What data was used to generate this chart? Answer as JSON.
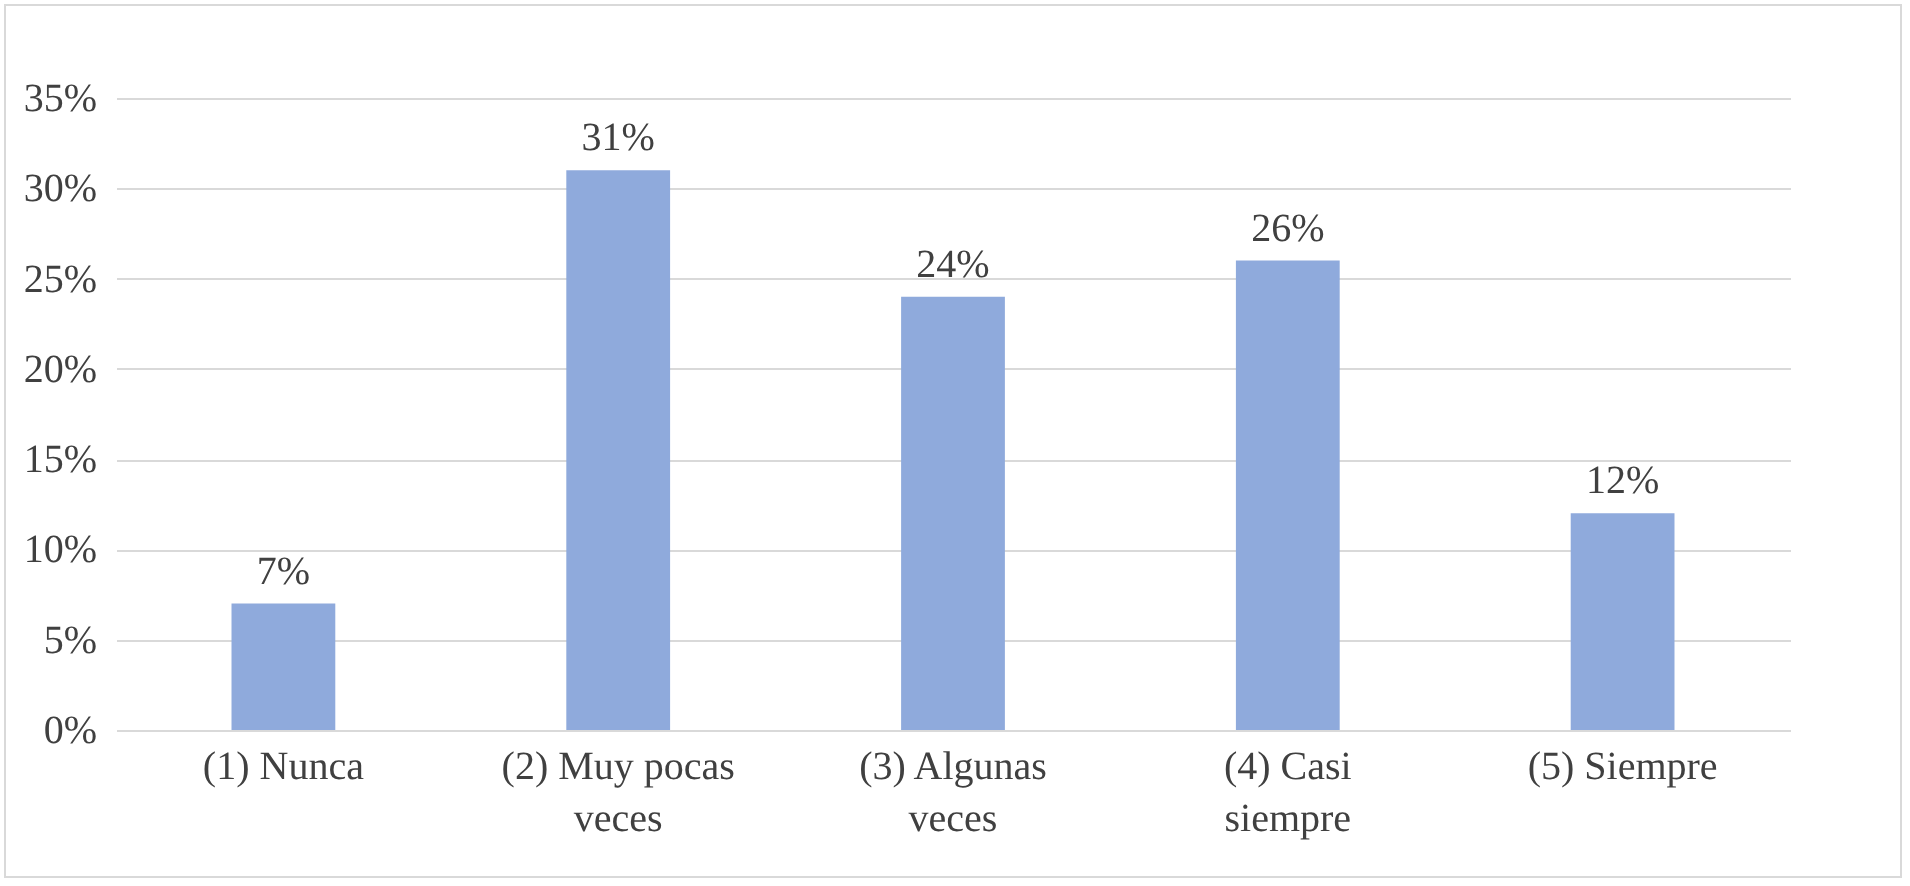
{
  "chart_data": {
    "type": "bar",
    "categories": [
      "(1) Nunca",
      "(2) Muy pocas veces",
      "(3) Algunas veces",
      "(4) Casi siempre",
      "(5) Siempre"
    ],
    "values": [
      7,
      31,
      24,
      26,
      12
    ],
    "color": "#8faadc",
    "value_labels": [
      "7%",
      "31%",
      "24%",
      "26%",
      "12%"
    ],
    "ylim": [
      0,
      35
    ],
    "yticks": [
      {
        "value": 0,
        "label": "0%"
      },
      {
        "value": 5,
        "label": "5%"
      },
      {
        "value": 10,
        "label": "10%"
      },
      {
        "value": 15,
        "label": "15%"
      },
      {
        "value": 20,
        "label": "20%"
      },
      {
        "value": 25,
        "label": "25%"
      },
      {
        "value": 30,
        "label": "30%"
      },
      {
        "value": 35,
        "label": "35%"
      }
    ],
    "grid": "y"
  }
}
